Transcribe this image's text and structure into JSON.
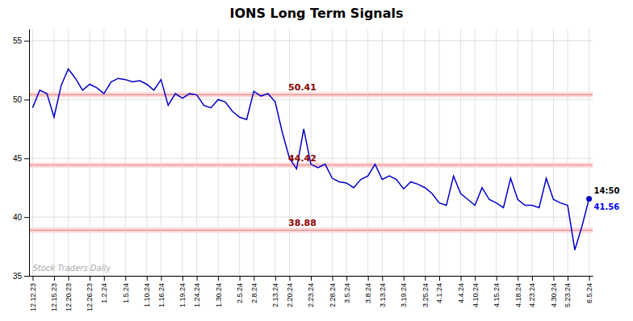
{
  "chart_data": {
    "type": "line",
    "title": "IONS Long Term Signals",
    "categories": [
      "12.12.23",
      null,
      null,
      "12.15.23",
      null,
      "12.20.23",
      null,
      null,
      "12.26.23",
      null,
      "1.2.24",
      null,
      null,
      "1.5.24",
      null,
      null,
      "1.10.24",
      null,
      "1.16.24",
      null,
      null,
      "1.19.24",
      null,
      "1.24.24",
      null,
      null,
      "1.30.24",
      null,
      null,
      "2.5.24",
      null,
      "2.8.24",
      null,
      null,
      "2.13.24",
      null,
      "2.20.24",
      null,
      null,
      "2.23.24",
      null,
      null,
      "2.28.24",
      null,
      "3.5.24",
      null,
      null,
      "3.8.24",
      null,
      "3.13.24",
      null,
      null,
      "3.19.24",
      null,
      null,
      "3.25.24",
      null,
      "4.1.24",
      null,
      null,
      "4.4.24",
      null,
      "4.10.24",
      null,
      null,
      "4.15.24",
      null,
      null,
      "4.18.24",
      null,
      "4.23.24",
      null,
      null,
      "4.30.24",
      null,
      "5.23.24",
      null,
      null,
      "6.5.24"
    ],
    "values": [
      49.3,
      50.8,
      50.5,
      48.5,
      51.2,
      52.6,
      51.8,
      50.8,
      51.3,
      51.0,
      50.5,
      51.5,
      51.8,
      51.7,
      51.5,
      51.6,
      51.3,
      50.8,
      51.7,
      49.5,
      50.5,
      50.1,
      50.5,
      50.4,
      49.5,
      49.3,
      50.0,
      49.8,
      49.0,
      48.5,
      48.3,
      50.7,
      50.3,
      50.5,
      49.8,
      47.2,
      45.0,
      44.1,
      47.5,
      44.5,
      44.2,
      44.5,
      43.3,
      43.0,
      42.9,
      42.5,
      43.2,
      43.5,
      44.5,
      43.2,
      43.5,
      43.2,
      42.4,
      43.0,
      42.8,
      42.5,
      42.0,
      41.2,
      41.0,
      43.5,
      42.0,
      41.5,
      41.0,
      42.5,
      41.5,
      41.2,
      40.8,
      43.3,
      41.5,
      41.0,
      41.0,
      40.8,
      43.3,
      41.5,
      41.2,
      41.0,
      37.2,
      39.2,
      41.56
    ],
    "color": "#0000cc",
    "ylim": [
      35,
      56
    ],
    "yticks": [
      35,
      40,
      45,
      50,
      55
    ],
    "grid": true,
    "hlines": [
      50.41,
      44.42,
      38.88
    ],
    "annotations": [
      "14:50",
      "Stock Traders Daily"
    ]
  }
}
